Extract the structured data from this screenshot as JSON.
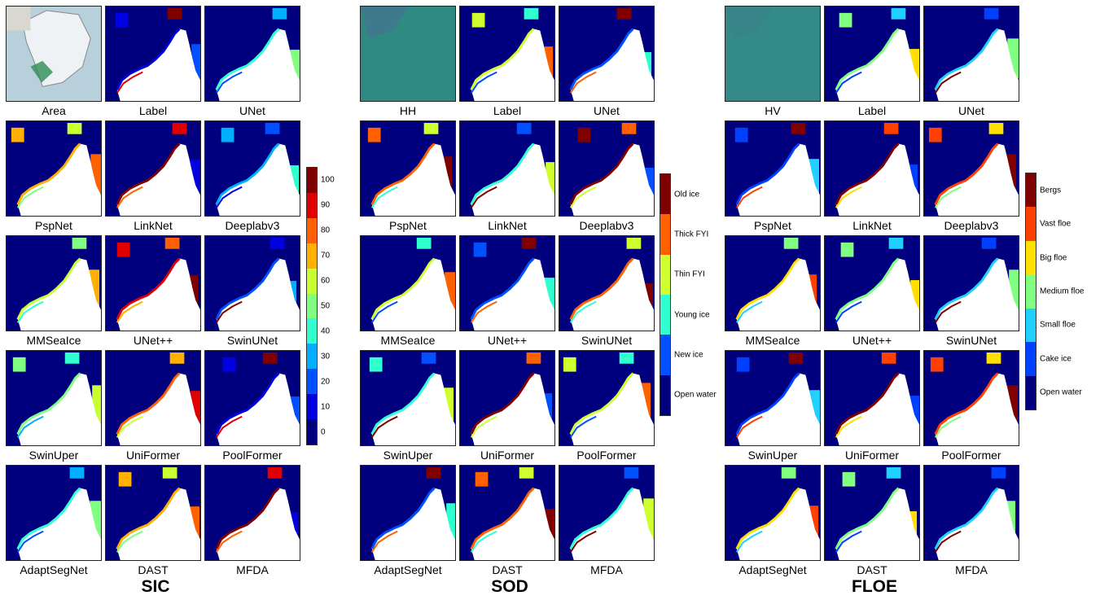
{
  "panels": [
    {
      "title": "SIC",
      "captions": [
        "Area",
        "Label",
        "UNet",
        "PspNet",
        "LinkNet",
        "Deeplabv3",
        "MMSeaIce",
        "UNet++",
        "SwinUNet",
        "SwinUper",
        "UniFormer",
        "PoolFormer",
        "AdaptSegNet",
        "DAST",
        "MFDA"
      ],
      "legend": {
        "labels": [
          100,
          90,
          80,
          70,
          60,
          50,
          40,
          30,
          20,
          10,
          0
        ],
        "colors": [
          "#800000",
          "#e00000",
          "#ff6000",
          "#ffb000",
          "#c8ff30",
          "#80ff80",
          "#30ffd0",
          "#00b0ff",
          "#0050ff",
          "#0000e0",
          "#00007f"
        ]
      }
    },
    {
      "title": "SOD",
      "captions": [
        "HH",
        "Label",
        "UNet",
        "PspNet",
        "LinkNet",
        "Deeplabv3",
        "MMSeaIce",
        "UNet++",
        "SwinUNet",
        "SwinUper",
        "UniFormer",
        "PoolFormer",
        "AdaptSegNet",
        "DAST",
        "MFDA"
      ],
      "legend": {
        "labels": [
          "Old ice",
          "Thick FYI",
          "Thin FYI",
          "Young ice",
          "New ice",
          "Open water"
        ],
        "colors": [
          "#800000",
          "#ff6000",
          "#d0ff30",
          "#30ffd0",
          "#0050ff",
          "#00007f"
        ]
      }
    },
    {
      "title": "FLOE",
      "captions": [
        "HV",
        "Label",
        "UNet",
        "PspNet",
        "LinkNet",
        "Deeplabv3",
        "MMSeaIce",
        "UNet++",
        "SwinUNet",
        "SwinUper",
        "UniFormer",
        "PoolFormer",
        "AdaptSegNet",
        "DAST",
        "MFDA"
      ],
      "legend": {
        "labels": [
          "Bergs",
          "Vast floe",
          "Big floe",
          "Medium floe",
          "Small floe",
          "Cake ice",
          "Open water"
        ],
        "colors": [
          "#800000",
          "#ff4000",
          "#ffe000",
          "#80ff80",
          "#20d0ff",
          "#0040ff",
          "#00007f"
        ]
      }
    }
  ]
}
